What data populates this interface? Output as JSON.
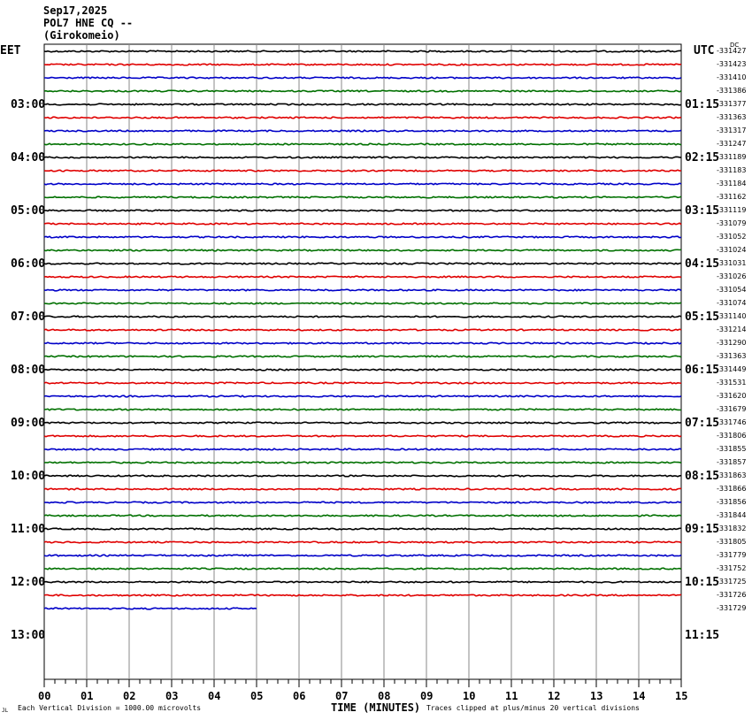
{
  "header": {
    "date": "Sep17,2025",
    "station": "POL7 HNE CQ --",
    "location": "(Girokomeio)"
  },
  "left_zone": "EET",
  "right_zone": "UTC",
  "dc_label": "DC",
  "footer": {
    "corner_mark": "JL",
    "scale_note": "Each Vertical Division = 1000.00 microvolts",
    "clip_note": "Traces clipped at plus/minus 20 vertical divisions"
  },
  "chart_data": {
    "type": "line",
    "title": "",
    "xlabel": "TIME (MINUTES)",
    "ylabel": "",
    "x_ticks": [
      "00",
      "01",
      "02",
      "03",
      "04",
      "05",
      "06",
      "07",
      "08",
      "09",
      "10",
      "11",
      "12",
      "13",
      "14",
      "15"
    ],
    "xlim": [
      0,
      15
    ],
    "grid": true,
    "minutes_per_trace": 15,
    "trace_colors": [
      "#000000",
      "#e00000",
      "#0000c8",
      "#007000"
    ],
    "left_hour_labels": [
      "03:00",
      "04:00",
      "05:00",
      "06:00",
      "07:00",
      "08:00",
      "09:00",
      "10:00",
      "11:00",
      "12:00",
      "13:00"
    ],
    "right_hour_labels": [
      "01:15",
      "02:15",
      "03:15",
      "04:15",
      "05:15",
      "06:15",
      "07:15",
      "08:15",
      "09:15",
      "10:15",
      "11:15"
    ],
    "trace_dc_offsets": [
      "-331427",
      "-331423",
      "-331410",
      "-331386",
      "-331377",
      "-331363",
      "-331317",
      "-331247",
      "-331189",
      "-331183",
      "-331184",
      "-331162",
      "-331119",
      "-331079",
      "-331052",
      "-331024",
      "-331031",
      "-331026",
      "-331054",
      "-331074",
      "-331140",
      "-331214",
      "-331290",
      "-331363",
      "-331449",
      "-331531",
      "-331620",
      "-331679",
      "-331746",
      "-331806",
      "-331855",
      "-331857",
      "-331863",
      "-331866",
      "-331856",
      "-331844",
      "-331832",
      "-331805",
      "-331779",
      "-331752",
      "-331725",
      "-331726",
      "-331729"
    ],
    "last_trace_end_minute": 5
  }
}
